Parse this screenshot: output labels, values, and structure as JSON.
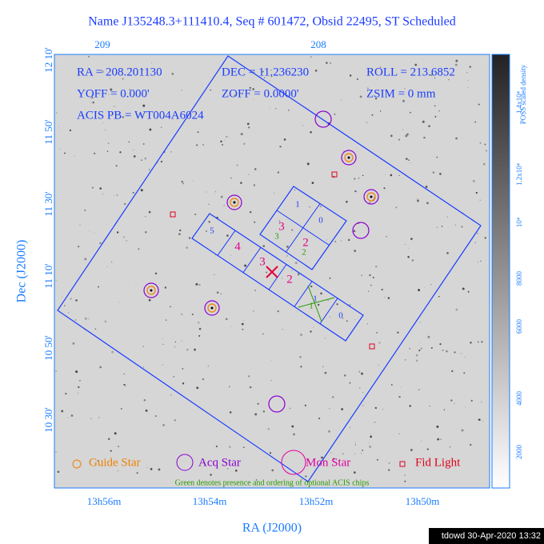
{
  "header": {
    "title": "Name J135248.3+111410.4, Seq # 601472, Obsid 22495, ST Scheduled"
  },
  "top_axis": {
    "ticks": [
      "209",
      "208"
    ]
  },
  "info": {
    "ra": "RA = 208.201130",
    "dec": "DEC = 11.236230",
    "roll": "ROLL = 213.6852",
    "yoff": "YOFF =    0.000'",
    "zoff": "ZOFF =  0.0000'",
    "zsim": "ZSIM = 0 mm",
    "acis": "ACIS PB = WT004A6024"
  },
  "y_axis": {
    "label": "Dec (J2000)",
    "ticks": [
      "12 10'",
      "11 50'",
      "11 30'",
      "11 10'",
      "10 50'",
      "10 30'"
    ]
  },
  "x_axis": {
    "label": "RA (J2000)",
    "ticks": [
      "13h56m",
      "13h54m",
      "13h52m",
      "13h50m"
    ]
  },
  "colorbar": {
    "label": "POSS scaled density",
    "ticks": [
      "1.4x10⁴",
      "1.2x10⁴",
      "10⁴",
      "8000",
      "6000",
      "4000",
      "2000"
    ]
  },
  "chips": {
    "i_array": [
      "1",
      "0",
      "3",
      "2"
    ],
    "i_green": [
      "3",
      "2"
    ],
    "s_array": [
      "5",
      "4",
      "3",
      "2",
      "1",
      "0"
    ],
    "s_green": [
      "1"
    ]
  },
  "legend": {
    "items": [
      "Guide Star",
      "Acq Star",
      "Mon Star",
      "Fid Light"
    ],
    "note": "Green denotes presence and ordering of optional ACIS chips"
  },
  "footer": "tdowd 30-Apr-2020 13:32"
}
